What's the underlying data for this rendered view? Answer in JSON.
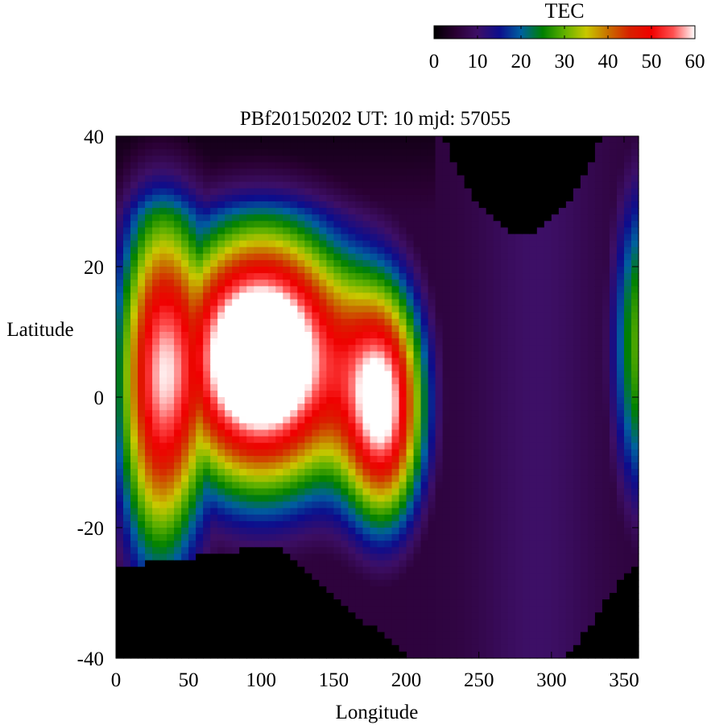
{
  "chart_data": {
    "type": "heatmap",
    "title": "PBf20150202  UT: 10  mjd: 57055",
    "xlabel": "Longitude",
    "ylabel": "Latitude",
    "xlim": [
      0,
      360
    ],
    "ylim": [
      -40,
      40
    ],
    "x_ticks": [
      0,
      50,
      100,
      150,
      200,
      250,
      300,
      350
    ],
    "y_ticks": [
      -40,
      -20,
      0,
      20,
      40
    ],
    "colorbar": {
      "label": "TEC",
      "range": [
        0,
        60
      ],
      "ticks": [
        0,
        10,
        20,
        30,
        40,
        50,
        60
      ],
      "palette": [
        [
          0,
          "#000000"
        ],
        [
          5,
          "#2a0033"
        ],
        [
          10,
          "#3d0f66"
        ],
        [
          15,
          "#0d0d8c"
        ],
        [
          20,
          "#0060a0"
        ],
        [
          25,
          "#008000"
        ],
        [
          30,
          "#60b000"
        ],
        [
          35,
          "#c8c800"
        ],
        [
          40,
          "#c87000"
        ],
        [
          45,
          "#d82000"
        ],
        [
          50,
          "#f00000"
        ],
        [
          55,
          "#ff5050"
        ],
        [
          60,
          "#ffffff"
        ]
      ]
    },
    "grid": false
  }
}
